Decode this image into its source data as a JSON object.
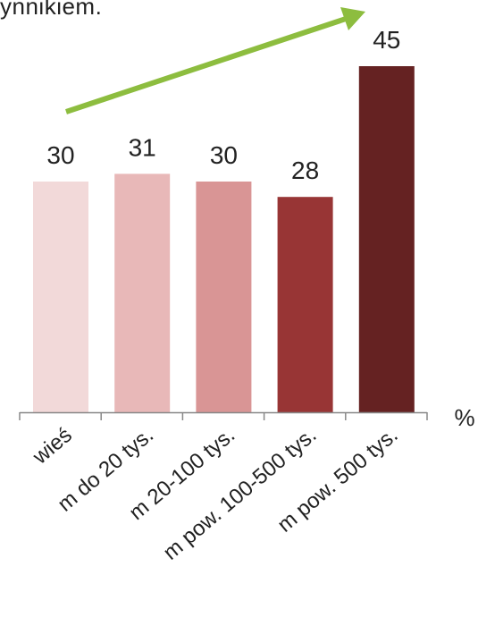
{
  "top_text": "ynnikiem.",
  "chart_data": {
    "type": "bar",
    "categories": [
      "wieś",
      "m do 20 tys.",
      "m 20-100 tys.",
      "m pow. 100-500 tys.",
      "m pow. 500 tys."
    ],
    "values": [
      30,
      31,
      30,
      28,
      45
    ],
    "bar_colors": [
      "#f2d9d9",
      "#e8b8b8",
      "#d99595",
      "#983535",
      "#652222"
    ],
    "unit": "%",
    "ylim": [
      0,
      56
    ],
    "trend_arrow_color": "#8dbd3f",
    "grid": false,
    "legend": "none"
  }
}
